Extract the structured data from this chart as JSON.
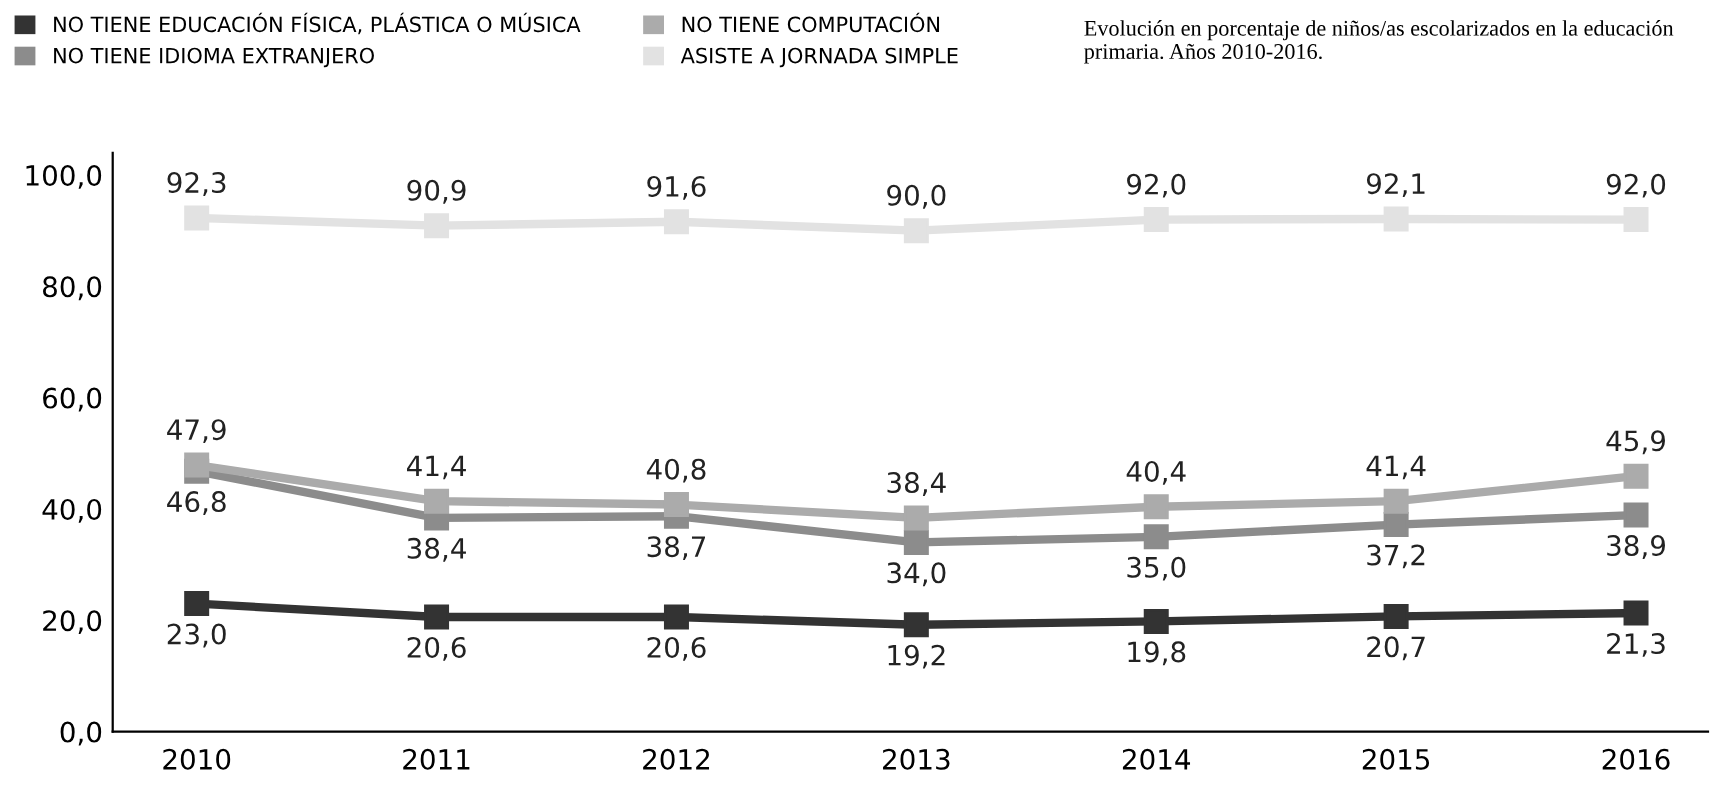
{
  "chart_data": {
    "type": "line",
    "title": "Evolución en porcentaje de niños/as escolarizados en la educación primaria. Años 2010-2016.",
    "categories": [
      "2010",
      "2011",
      "2012",
      "2013",
      "2014",
      "2015",
      "2016"
    ],
    "series": [
      {
        "name": "NO TIENE EDUCACIÓN FÍSICA, PLÁSTICA O MÚSICA",
        "color": "#333333",
        "values": [
          23.0,
          20.6,
          20.6,
          19.2,
          19.8,
          20.7,
          21.3
        ],
        "value_labels": [
          "23,0",
          "20,6",
          "20,6",
          "19,2",
          "19,8",
          "20,7",
          "21,3"
        ]
      },
      {
        "name": "NO TIENE IDIOMA EXTRANJERO",
        "color": "#8c8c8c",
        "values": [
          46.8,
          38.4,
          38.7,
          34.0,
          35.0,
          37.2,
          38.9
        ],
        "value_labels": [
          "46,8",
          "38,4",
          "38,7",
          "34,0",
          "35,0",
          "37,2",
          "38,9"
        ]
      },
      {
        "name": "NO TIENE COMPUTACIÓN",
        "color": "#ababab",
        "values": [
          47.9,
          41.4,
          40.8,
          38.4,
          40.4,
          41.4,
          45.9
        ],
        "value_labels": [
          "47,9",
          "41,4",
          "40,8",
          "38,4",
          "40,4",
          "41,4",
          "45,9"
        ]
      },
      {
        "name": "ASISTE A JORNADA SIMPLE",
        "color": "#e2e2e2",
        "values": [
          92.3,
          90.9,
          91.6,
          90.0,
          92.0,
          92.1,
          92.0
        ],
        "value_labels": [
          "92,3",
          "90,9",
          "91,6",
          "90,0",
          "92,0",
          "92,1",
          "92,0"
        ]
      }
    ],
    "ylim": [
      0,
      104
    ],
    "yticks": [
      {
        "value": 0,
        "label": "0,0"
      },
      {
        "value": 20,
        "label": "20,0"
      },
      {
        "value": 40,
        "label": "40,0"
      },
      {
        "value": 60,
        "label": "60,0"
      },
      {
        "value": 80,
        "label": "80,0"
      },
      {
        "value": 100,
        "label": "100,0"
      }
    ],
    "grid": false,
    "legend": "top left",
    "marker": "square",
    "line_style": "solid"
  }
}
